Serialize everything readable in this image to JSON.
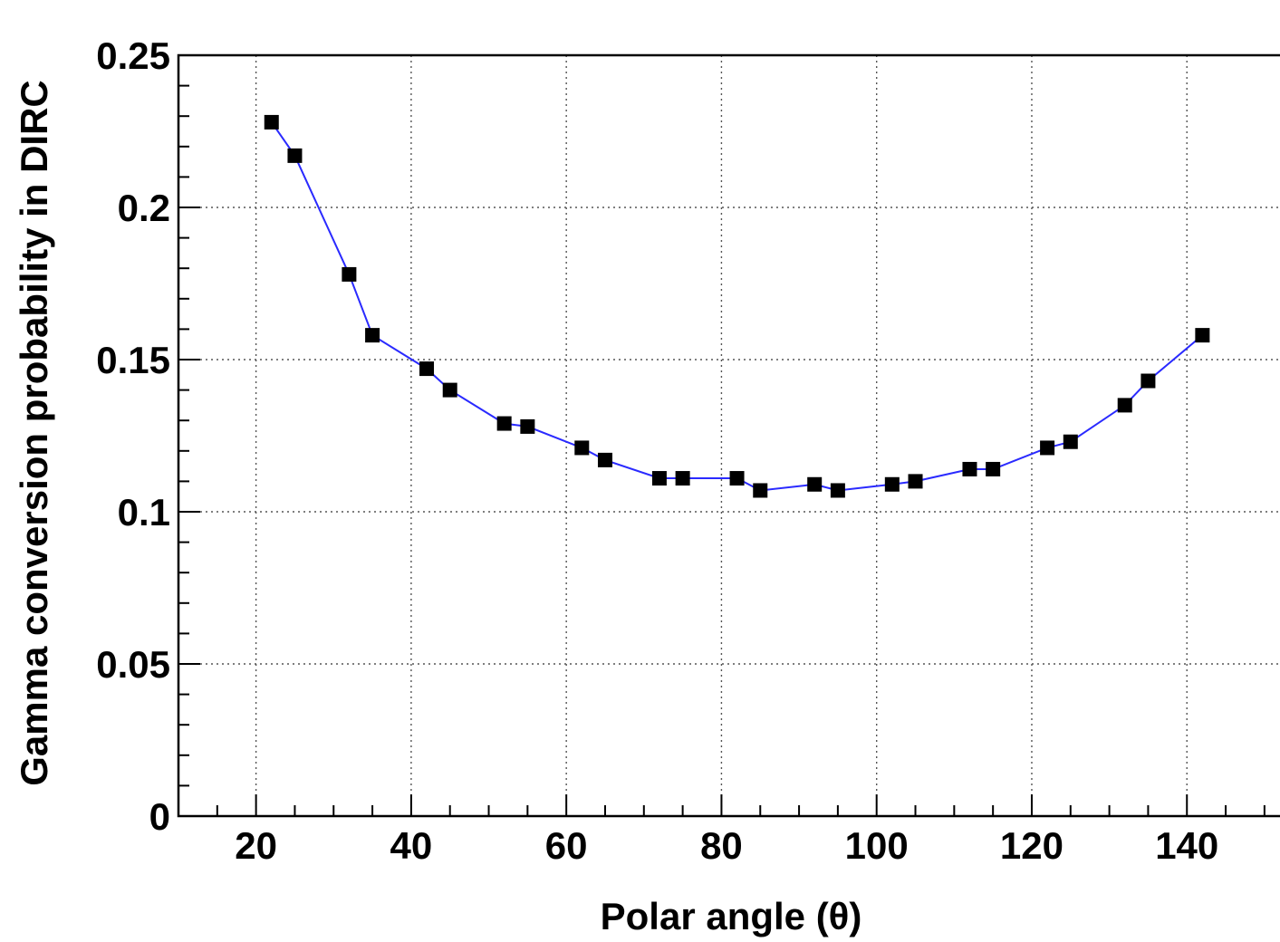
{
  "chart_data": {
    "type": "line",
    "title": "",
    "xlabel": "Polar angle (θ)",
    "ylabel": "Gamma conversion probability in DIRC",
    "xlim": [
      10,
      152
    ],
    "ylim": [
      0,
      0.25
    ],
    "xticks": [
      20,
      40,
      60,
      80,
      100,
      120,
      140
    ],
    "xtick_labels": [
      "20",
      "40",
      "60",
      "80",
      "100",
      "120",
      "140"
    ],
    "yticks": [
      0,
      0.05,
      0.1,
      0.15,
      0.2,
      0.25
    ],
    "ytick_labels": [
      "0",
      "0.05",
      "0.1",
      "0.15",
      "0.2",
      "0.25"
    ],
    "grid": true,
    "grid_style": "dotted",
    "line_color": "#2a2aff",
    "marker_color": "#000000",
    "marker": "square",
    "series": [
      {
        "x": [
          22,
          25,
          32,
          35,
          42,
          45,
          52,
          55,
          62,
          65,
          72,
          75,
          82,
          85,
          92,
          95,
          102,
          105,
          112,
          115,
          122,
          125,
          132,
          135,
          142
        ],
        "y": [
          0.228,
          0.217,
          0.178,
          0.158,
          0.147,
          0.14,
          0.129,
          0.128,
          0.121,
          0.117,
          0.111,
          0.111,
          0.111,
          0.107,
          0.109,
          0.107,
          0.109,
          0.11,
          0.114,
          0.114,
          0.121,
          0.123,
          0.135,
          0.143,
          0.158
        ]
      }
    ]
  }
}
